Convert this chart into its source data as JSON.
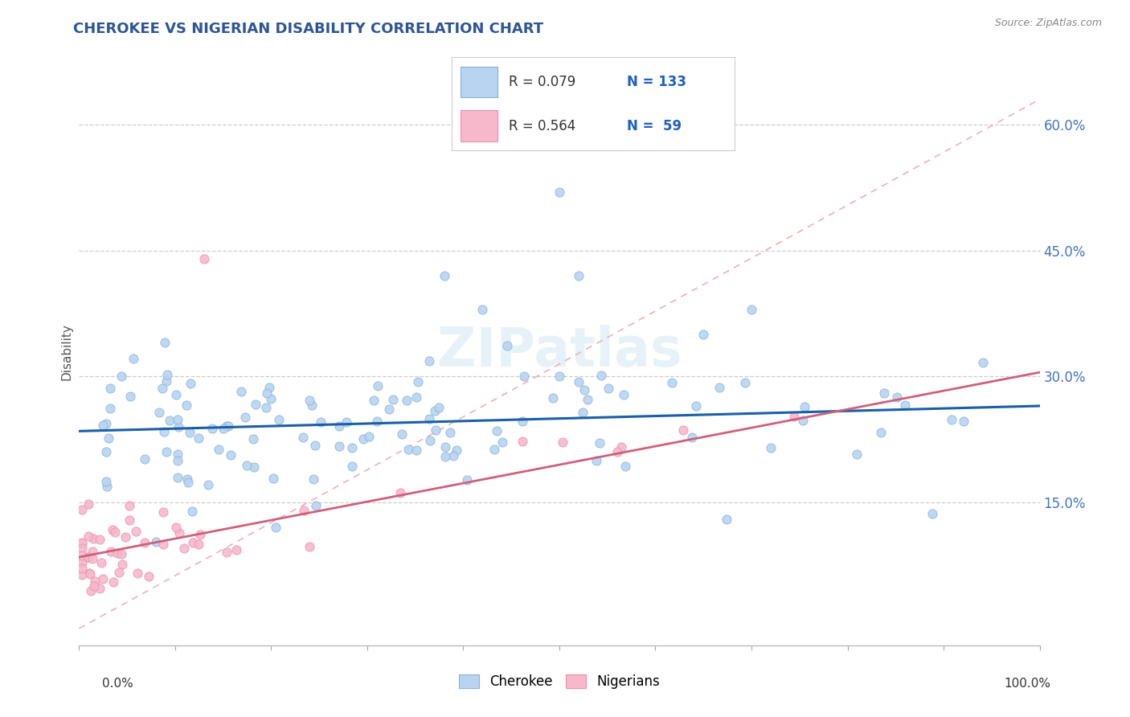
{
  "title": "CHEROKEE VS NIGERIAN DISABILITY CORRELATION CHART",
  "source": "Source: ZipAtlas.com",
  "ylabel": "Disability",
  "y_tick_labels": [
    "15.0%",
    "30.0%",
    "45.0%",
    "60.0%"
  ],
  "y_tick_values": [
    0.15,
    0.3,
    0.45,
    0.6
  ],
  "xlim": [
    0.0,
    1.0
  ],
  "ylim": [
    -0.02,
    0.68
  ],
  "cherokee_color": "#b8d4f0",
  "nigerian_color": "#f7b8cc",
  "cherokee_edge": "#8ab0d8",
  "nigerian_edge": "#e890a8",
  "trend_cherokee_color": "#1a5fa8",
  "trend_nigerian_color": "#d0607a",
  "ref_line_color": "#f0b0b8",
  "background_color": "#ffffff",
  "watermark": "ZIPatlas",
  "legend_r1": "R = 0.079",
  "legend_n1": "N = 133",
  "legend_r2": "R = 0.564",
  "legend_n2": "N =  59",
  "legend_color": "#2060c0",
  "ytick_color": "#4472c4"
}
